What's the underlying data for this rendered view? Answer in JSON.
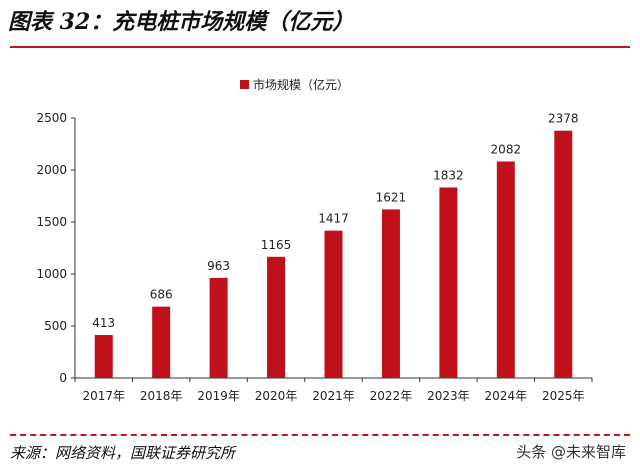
{
  "figure_title": "图表 32：充电桩市场规模（亿元）",
  "source_text": "来源：网络资料，国联证券研究所",
  "watermark_text": "头条 @未来智库",
  "colors": {
    "bar": "#c0101a",
    "rule": "#b8191e"
  },
  "chart_data": {
    "type": "bar",
    "categories": [
      "2017年",
      "2018年",
      "2019年",
      "2020年",
      "2021年",
      "2022年",
      "2023年",
      "2024年",
      "2025年"
    ],
    "series": [
      {
        "name": "市场规模（亿元）",
        "values": [
          413,
          686,
          963,
          1165,
          1417,
          1621,
          1832,
          2082,
          2378
        ]
      }
    ],
    "ylim": [
      0,
      2500
    ],
    "yticks": [
      0,
      500,
      1000,
      1500,
      2000,
      2500
    ],
    "legend_position": "top-center",
    "grid": false,
    "data_labels": true
  }
}
